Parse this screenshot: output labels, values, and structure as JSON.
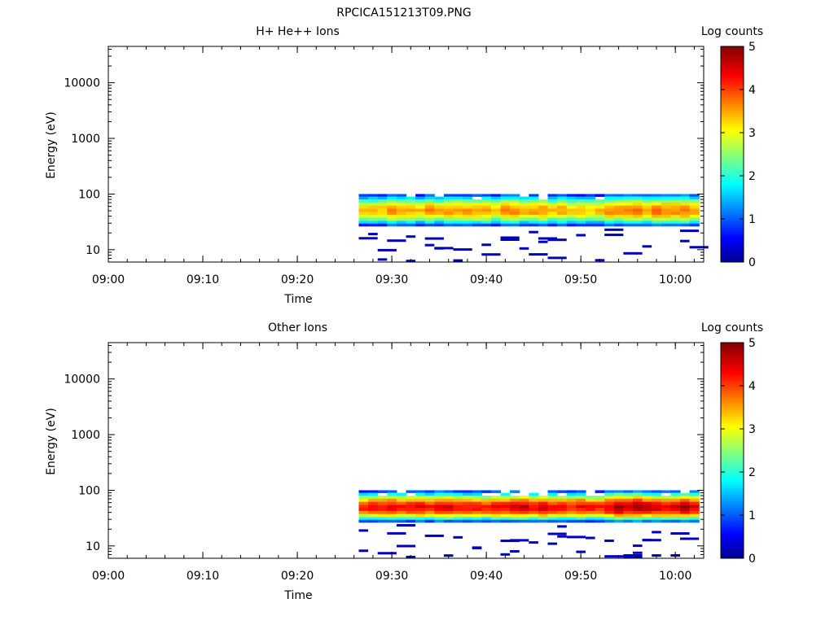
{
  "figure_title": "RPCICA151213T09.PNG",
  "chart_data": [
    {
      "type": "heatmap",
      "title": "H+ He++ Ions",
      "xlabel": "Time",
      "ylabel": "Energy (eV)",
      "x_ticks": [
        "09:00",
        "09:10",
        "09:20",
        "09:30",
        "09:40",
        "09:50",
        "10:00"
      ],
      "xlim": [
        "09:00",
        "10:03"
      ],
      "y_scale": "log",
      "y_ticks": [
        "10",
        "100",
        "1000",
        "10000"
      ],
      "ylim": [
        6,
        45000
      ],
      "colorbar": {
        "label": "Log counts",
        "range": [
          0,
          5
        ],
        "ticks": [
          "0",
          "1",
          "2",
          "3",
          "4",
          "5"
        ],
        "colormap": "jet"
      },
      "data_time_range": [
        "09:26.5",
        "10:02.5"
      ],
      "band_profile": {
        "energy_ev": [
          95,
          85,
          75,
          66,
          58,
          51,
          45,
          40,
          35,
          31,
          28
        ],
        "log_counts": [
          1.0,
          1.7,
          2.4,
          3.0,
          3.4,
          3.6,
          3.5,
          3.1,
          2.5,
          1.8,
          1.0
        ]
      },
      "grid": false,
      "legend": "colorbar-right"
    },
    {
      "type": "heatmap",
      "title": "Other Ions",
      "xlabel": "Time",
      "ylabel": "Energy (eV)",
      "x_ticks": [
        "09:00",
        "09:10",
        "09:20",
        "09:30",
        "09:40",
        "09:50",
        "10:00"
      ],
      "xlim": [
        "09:00",
        "10:03"
      ],
      "y_scale": "log",
      "y_ticks": [
        "10",
        "100",
        "1000",
        "10000"
      ],
      "ylim": [
        6,
        45000
      ],
      "colorbar": {
        "label": "Log counts",
        "range": [
          0,
          5
        ],
        "ticks": [
          "0",
          "1",
          "2",
          "3",
          "4",
          "5"
        ],
        "colormap": "jet"
      },
      "data_time_range": [
        "09:26.5",
        "10:02.5"
      ],
      "band_profile": {
        "energy_ev": [
          95,
          85,
          75,
          66,
          58,
          51,
          45,
          40,
          35,
          31,
          28
        ],
        "log_counts": [
          1.0,
          1.9,
          2.8,
          3.5,
          4.1,
          4.4,
          4.3,
          3.9,
          3.1,
          2.1,
          1.1
        ]
      },
      "grid": false,
      "legend": "colorbar-right"
    }
  ]
}
